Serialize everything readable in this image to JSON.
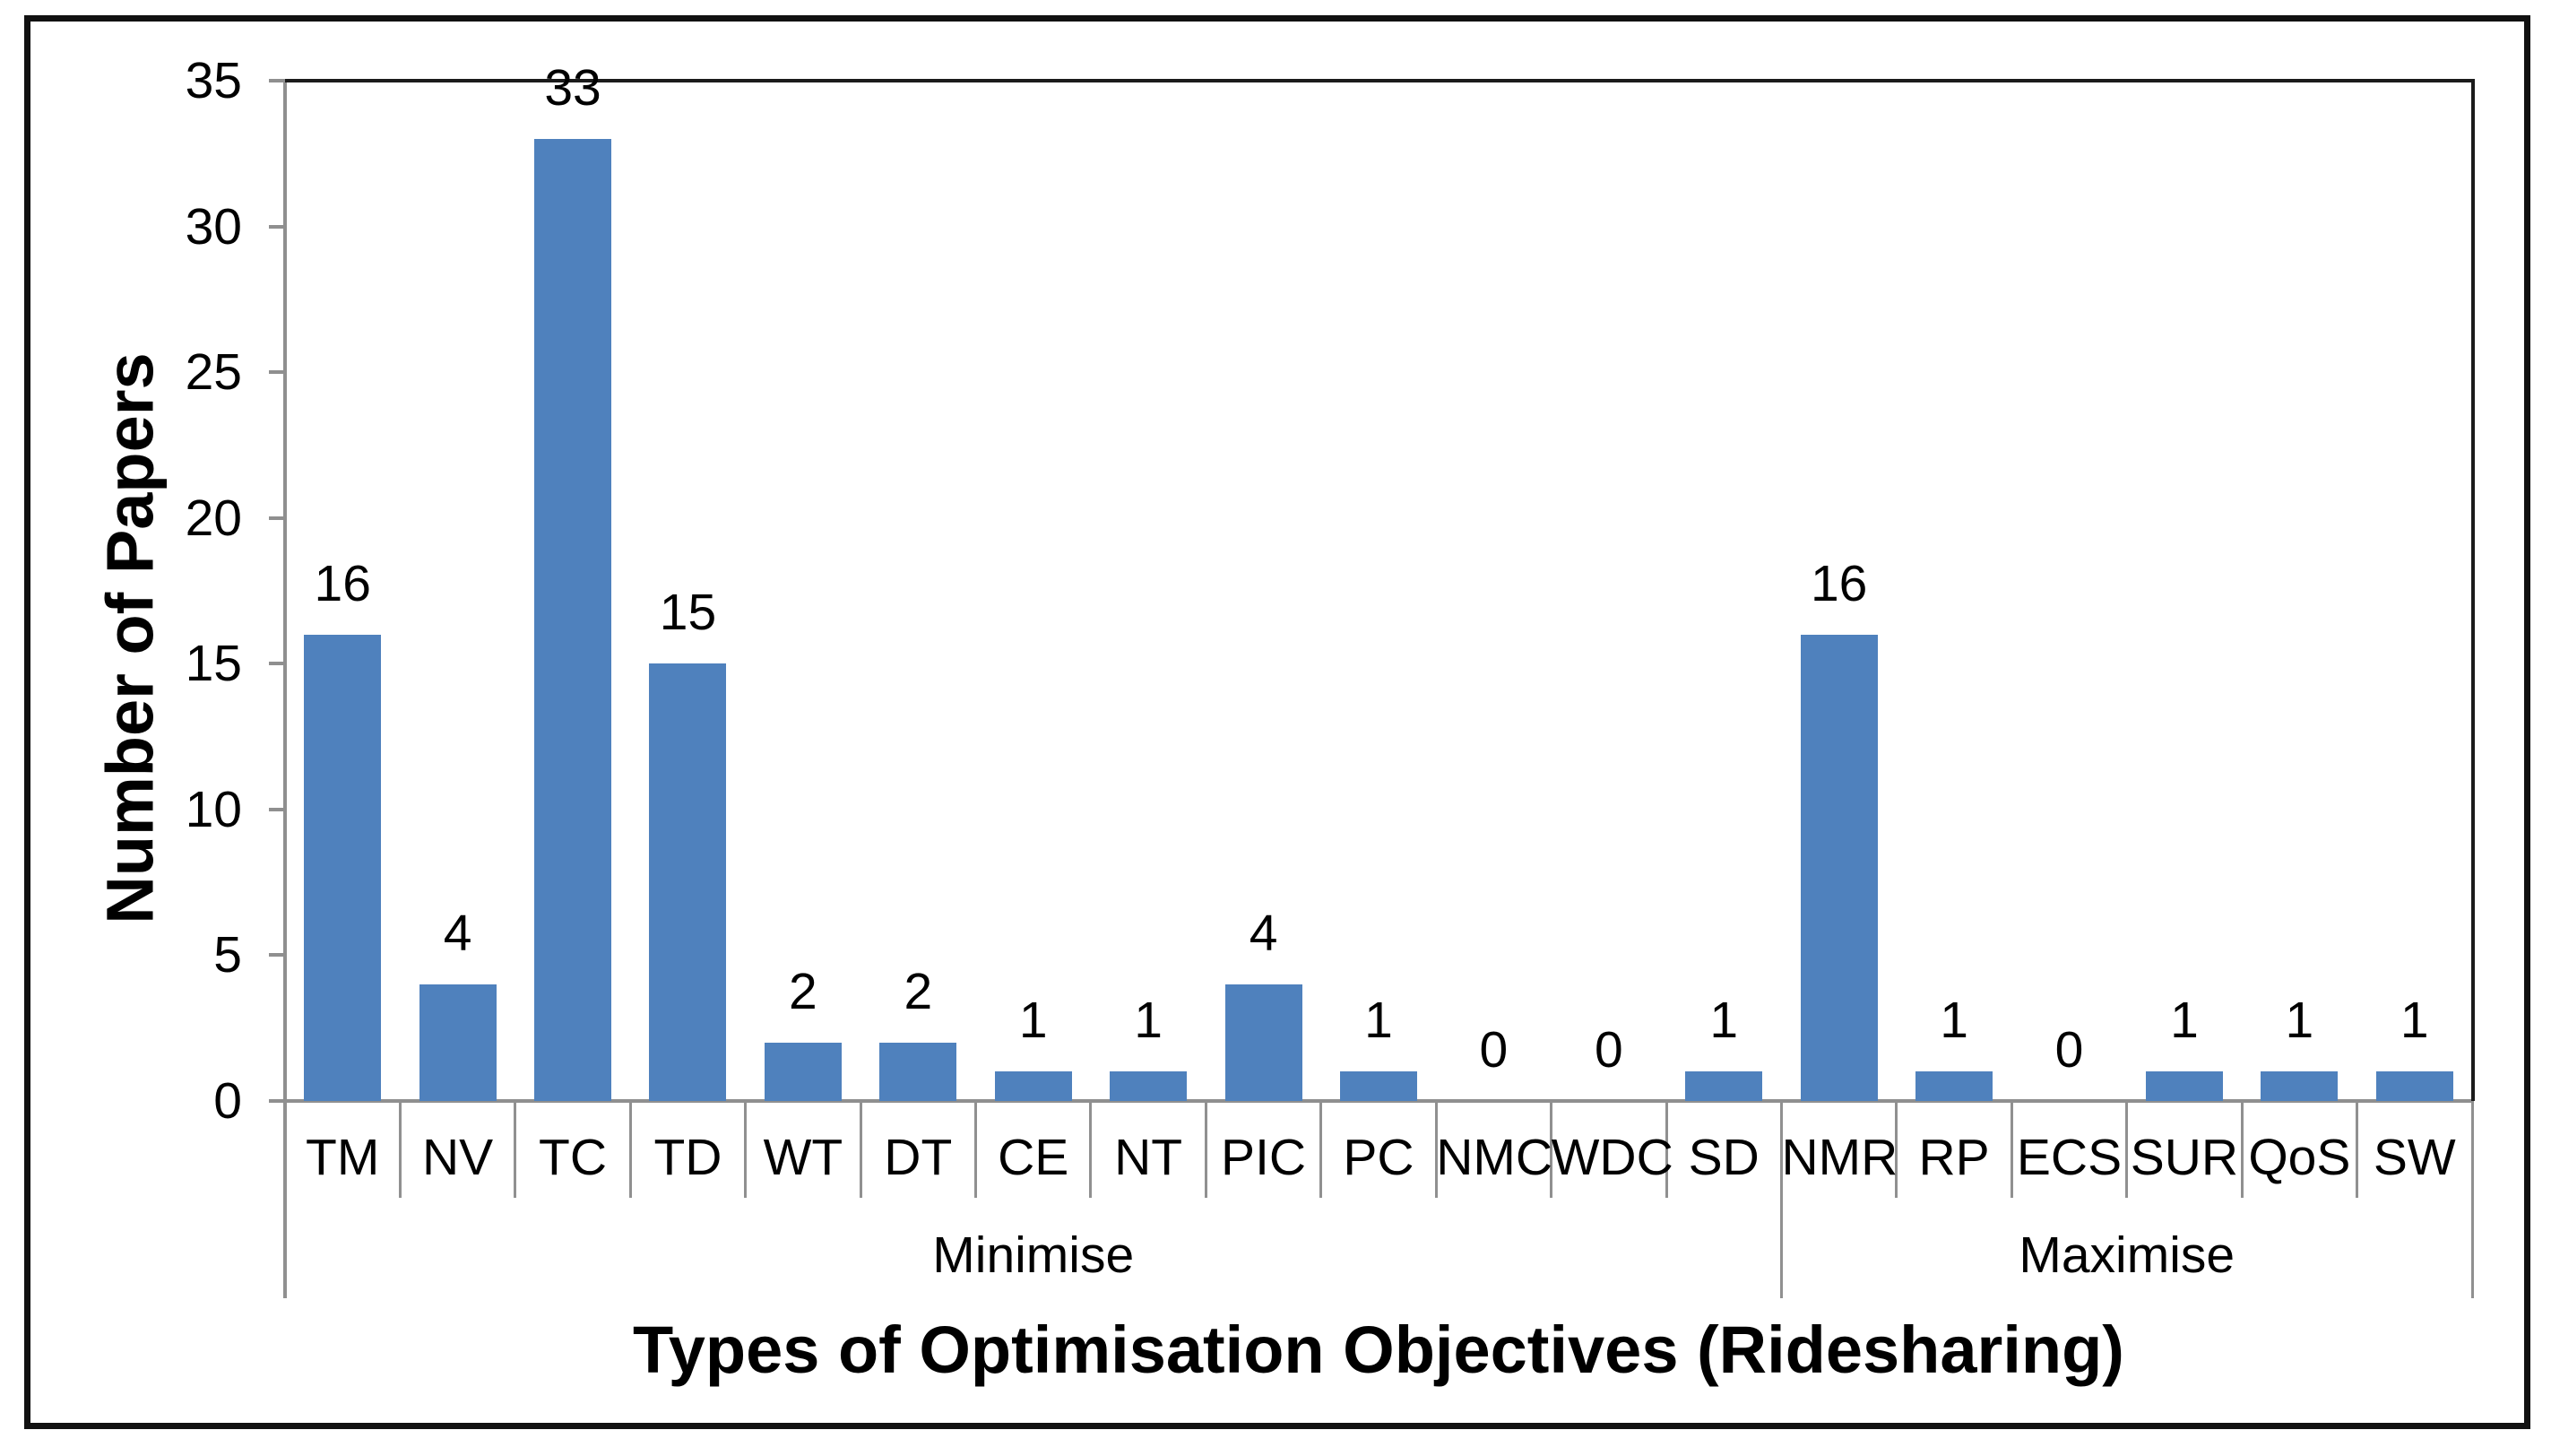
{
  "chart_data": {
    "type": "bar",
    "title": "",
    "xlabel": "Types of Optimisation Objectives (Ridesharing)",
    "ylabel": "Number of Papers",
    "categories": [
      "TM",
      "NV",
      "TC",
      "TD",
      "WT",
      "DT",
      "CE",
      "NT",
      "PIC",
      "PC",
      "NMC",
      "WDC",
      "SD",
      "NMR",
      "RP",
      "ECS",
      "SUR",
      "QoS",
      "SW"
    ],
    "values": [
      16,
      4,
      33,
      15,
      2,
      2,
      1,
      1,
      4,
      1,
      0,
      0,
      1,
      16,
      1,
      0,
      1,
      1,
      1
    ],
    "value_labels_shown": true,
    "groups": [
      {
        "label": "Minimise",
        "start_index": 0,
        "end_index": 12
      },
      {
        "label": "Maximise",
        "start_index": 13,
        "end_index": 18
      }
    ],
    "ylim": [
      0,
      35
    ],
    "yticks": [
      0,
      5,
      10,
      15,
      20,
      25,
      30,
      35
    ],
    "grid": false,
    "legend": false,
    "bar_color": "#4F81BD",
    "axis_color": "#8F8F8F",
    "plot_border_color": "#1B1B1B",
    "outer_border_color": "#111111",
    "text_color": "#000000"
  }
}
